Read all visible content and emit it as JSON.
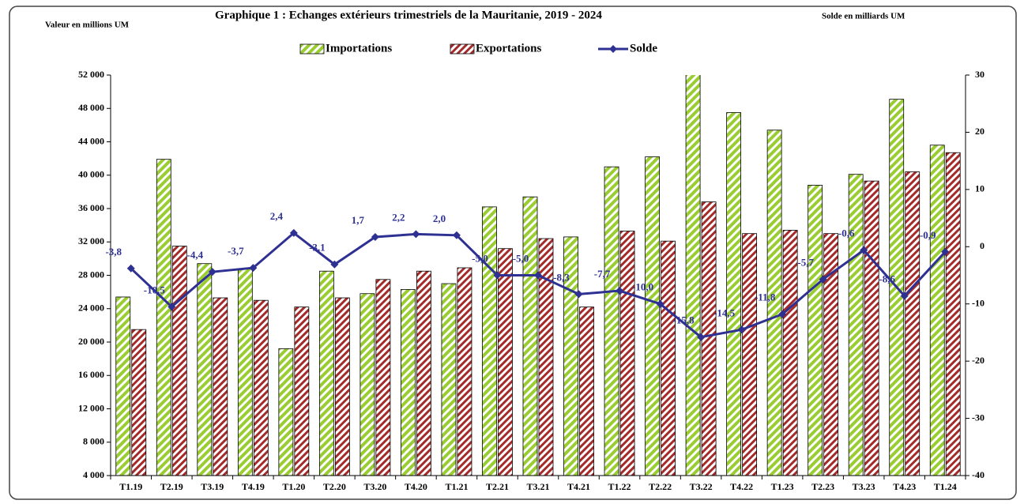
{
  "chart_data": {
    "type": "bar_line",
    "title": "Graphique 1 : Echanges extérieurs trimestriels de la Mauritanie, 2019 - 2024",
    "y_label": "Valeur en millions UM",
    "y2_label": "Solde en milliards UM",
    "categories": [
      "T1.19",
      "T2.19",
      "T3.19",
      "T4.19",
      "T1.20",
      "T2.20",
      "T3.20",
      "T4.20",
      "T1.21",
      "T2.21",
      "T3.21",
      "T4.21",
      "T1.22",
      "T2.22",
      "T3.22",
      "T4.22",
      "T1.23",
      "T2.23",
      "T3.23",
      "T4.23",
      "T1.24"
    ],
    "series": [
      {
        "name": "Importations",
        "color": "#9acd32",
        "type": "bar",
        "values": [
          25400,
          41900,
          29400,
          28800,
          19200,
          28500,
          25800,
          26300,
          27000,
          36200,
          37400,
          32600,
          41000,
          42200,
          52200,
          47500,
          45400,
          38800,
          40100,
          49100,
          43600
        ]
      },
      {
        "name": "Exportations",
        "color": "#a52a2a",
        "type": "bar",
        "values": [
          21500,
          31500,
          25300,
          25000,
          24200,
          25300,
          27500,
          28500,
          28900,
          31200,
          32400,
          24200,
          33300,
          32100,
          36800,
          33000,
          33400,
          33000,
          39300,
          40400,
          42700
        ]
      },
      {
        "name": "Solde",
        "color": "#2e3192",
        "type": "line",
        "axis": "y2",
        "values": [
          -3.8,
          -10.5,
          -4.4,
          -3.7,
          2.4,
          -3.1,
          1.7,
          2.2,
          2.0,
          -5.0,
          -5.0,
          -8.3,
          -7.7,
          -10.0,
          -15.8,
          -14.5,
          -11.8,
          -5.7,
          -0.6,
          -8.6,
          -0.9
        ],
        "value_labels": [
          "-3,8",
          "-10,5",
          "-4,4",
          "-3,7",
          "2,4",
          "-3,1",
          "1,7",
          "2,2",
          "2,0",
          "-5,0",
          "-5,0",
          "-8,3",
          "-7,7",
          "-10,0",
          "-15,8",
          "-14,5",
          "-11,8",
          "-5,7",
          "-0,6",
          "-8,6",
          "-0,9"
        ]
      }
    ],
    "ylim": [
      4000,
      52000
    ],
    "yticks": [
      {
        "value": 4000,
        "label": "4 000"
      },
      {
        "value": 8000,
        "label": "8 000"
      },
      {
        "value": 12000,
        "label": "12 000"
      },
      {
        "value": 16000,
        "label": "16 000"
      },
      {
        "value": 20000,
        "label": "20 000"
      },
      {
        "value": 24000,
        "label": "24 000"
      },
      {
        "value": 28000,
        "label": "28 000"
      },
      {
        "value": 32000,
        "label": "32 000"
      },
      {
        "value": 36000,
        "label": "36 000"
      },
      {
        "value": 40000,
        "label": "40 000"
      },
      {
        "value": 44000,
        "label": "44 000"
      },
      {
        "value": 48000,
        "label": "48 000"
      },
      {
        "value": 52000,
        "label": "52 000"
      }
    ],
    "y2lim": [
      -40,
      30
    ],
    "y2ticks": [
      -40,
      -30,
      -20,
      -10,
      0,
      10,
      20,
      30
    ],
    "legend": "top"
  }
}
